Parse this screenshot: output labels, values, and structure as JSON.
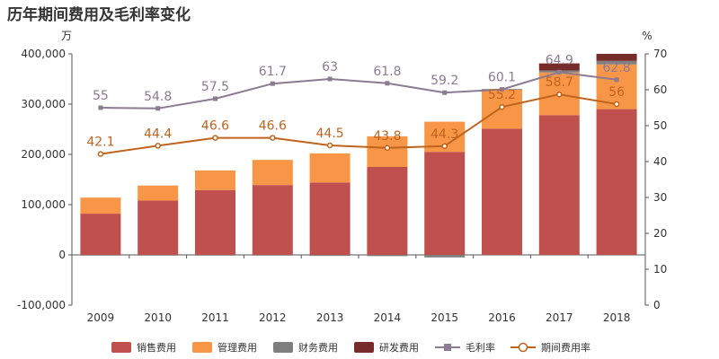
{
  "chart_data": {
    "type": "bar",
    "title": "历年期间费用及毛利率变化",
    "left_unit": "万",
    "right_unit": "%",
    "categories": [
      "2009",
      "2010",
      "2011",
      "2012",
      "2013",
      "2014",
      "2015",
      "2016",
      "2017",
      "2018"
    ],
    "y_left": {
      "min": -100000,
      "max": 400000,
      "ticks": [
        -100000,
        0,
        100000,
        200000,
        300000,
        400000
      ],
      "tick_labels": [
        "-100,000",
        "0",
        "100,000",
        "200,000",
        "300,000",
        "400,000"
      ]
    },
    "y_right": {
      "min": 0,
      "max": 70,
      "ticks": [
        0,
        10,
        20,
        30,
        40,
        50,
        60,
        70
      ],
      "tick_labels": [
        "0",
        "10",
        "20",
        "30",
        "40",
        "50",
        "60",
        "70"
      ]
    },
    "stacked_series": [
      {
        "name": "销售费用",
        "color": "#c0504d",
        "values": [
          82000,
          108000,
          129000,
          139000,
          144000,
          175000,
          205000,
          251000,
          278000,
          290000
        ]
      },
      {
        "name": "管理费用",
        "color": "#f79646",
        "values": [
          32000,
          30000,
          39000,
          50000,
          58000,
          61000,
          60000,
          78000,
          85000,
          89000
        ]
      },
      {
        "name": "财务费用",
        "color": "#7f7f7f",
        "values": [
          -500,
          -500,
          -500,
          -500,
          -2000,
          -2500,
          -5000,
          1000,
          4000,
          7000
        ]
      },
      {
        "name": "研发费用",
        "color": "#772c2a",
        "values": [
          0,
          0,
          0,
          0,
          0,
          0,
          0,
          0,
          14000,
          14000
        ]
      }
    ],
    "line_series": [
      {
        "name": "毛利率",
        "color": "#8c7b92",
        "marker": "square",
        "values": [
          55,
          54.8,
          57.5,
          61.7,
          63,
          61.8,
          59.2,
          60.1,
          64.9,
          62.8
        ],
        "labels": [
          "55",
          "54.8",
          "57.5",
          "61.7",
          "63",
          "61.8",
          "59.2",
          "60.1",
          "64.9",
          "62.8"
        ]
      },
      {
        "name": "期间费用率",
        "color": "#c0631f",
        "marker": "circle",
        "values": [
          42.1,
          44.4,
          46.6,
          46.6,
          44.5,
          43.8,
          44.3,
          55.2,
          58.7,
          56
        ],
        "labels": [
          "42.1",
          "44.4",
          "46.6",
          "46.6",
          "44.5",
          "43.8",
          "44.3",
          "55.2",
          "58.7",
          "56"
        ]
      }
    ],
    "legend_position": "bottom-center"
  }
}
